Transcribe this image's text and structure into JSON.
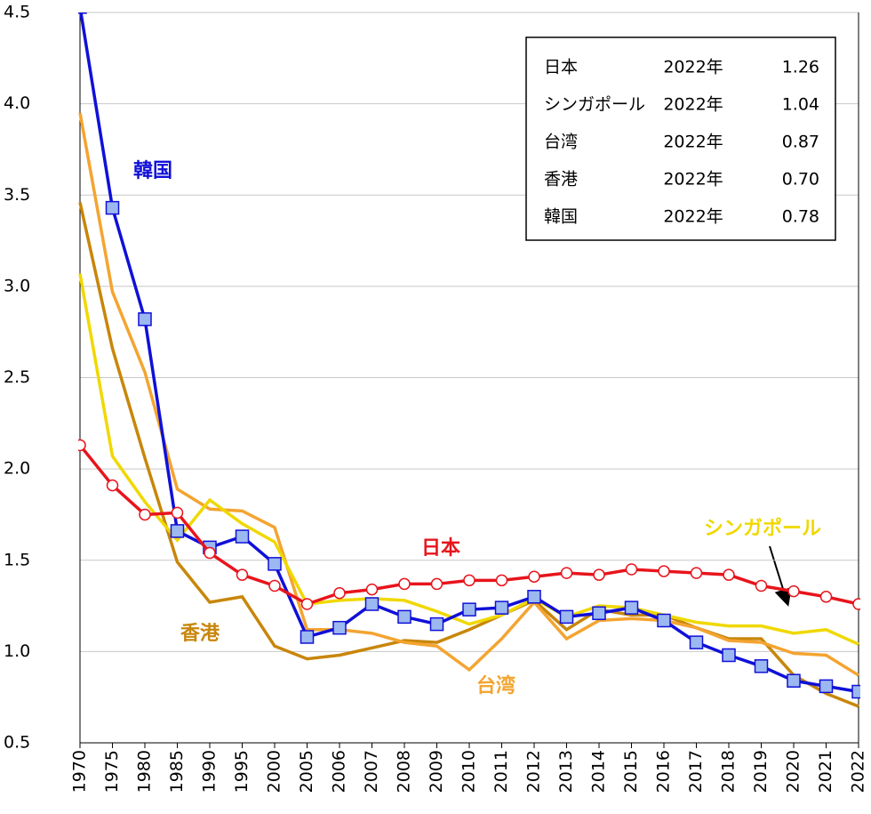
{
  "chart_data": {
    "type": "line",
    "categories": [
      "1970",
      "1975",
      "1980",
      "1985",
      "1990",
      "1995",
      "2000",
      "2005",
      "2006",
      "2007",
      "2008",
      "2009",
      "2010",
      "2011",
      "2012",
      "2013",
      "2014",
      "2015",
      "2016",
      "2017",
      "2018",
      "2019",
      "2020",
      "2021",
      "2022"
    ],
    "series": [
      {
        "name": "日本",
        "color": "#e8141c",
        "marker": "circle",
        "values": [
          2.13,
          1.91,
          1.75,
          1.76,
          1.54,
          1.42,
          1.36,
          1.26,
          1.32,
          1.34,
          1.37,
          1.37,
          1.39,
          1.39,
          1.41,
          1.43,
          1.42,
          1.45,
          1.44,
          1.43,
          1.42,
          1.36,
          1.33,
          1.3,
          1.26
        ]
      },
      {
        "name": "韓国",
        "color": "#1010d8",
        "marker": "square",
        "values": [
          4.53,
          3.43,
          2.82,
          1.66,
          1.57,
          1.63,
          1.48,
          1.08,
          1.13,
          1.26,
          1.19,
          1.15,
          1.23,
          1.24,
          1.3,
          1.19,
          1.21,
          1.24,
          1.17,
          1.05,
          0.98,
          0.92,
          0.84,
          0.81,
          0.78
        ]
      },
      {
        "name": "台湾",
        "color": "#f4a430",
        "marker": "none",
        "values": [
          3.95,
          2.97,
          2.53,
          1.89,
          1.78,
          1.77,
          1.68,
          1.12,
          1.12,
          1.1,
          1.05,
          1.03,
          0.9,
          1.07,
          1.27,
          1.07,
          1.17,
          1.18,
          1.17,
          1.13,
          1.06,
          1.05,
          0.99,
          0.98,
          0.87
        ]
      },
      {
        "name": "香港",
        "color": "#c8860a",
        "marker": "none",
        "values": [
          3.46,
          2.66,
          2.06,
          1.49,
          1.27,
          1.3,
          1.03,
          0.96,
          0.98,
          1.02,
          1.06,
          1.05,
          1.12,
          1.2,
          1.28,
          1.12,
          1.23,
          1.2,
          1.2,
          1.13,
          1.07,
          1.07,
          0.87,
          0.77,
          0.7
        ]
      },
      {
        "name": "シンガポール",
        "color": "#f0d800",
        "marker": "none",
        "values": [
          3.07,
          2.07,
          1.82,
          1.61,
          1.83,
          1.7,
          1.6,
          1.26,
          1.28,
          1.29,
          1.28,
          1.22,
          1.15,
          1.2,
          1.29,
          1.19,
          1.25,
          1.24,
          1.2,
          1.16,
          1.14,
          1.14,
          1.1,
          1.12,
          1.04
        ]
      }
    ],
    "ylim": [
      0.5,
      4.5
    ],
    "yticks": [
      0.5,
      {
        "value": 1,
        "label": "1.0"
      },
      1.5,
      {
        "value": 2,
        "label": "2.0"
      },
      2.5,
      {
        "value": 3,
        "label": "3.0"
      },
      3.5,
      {
        "value": 4,
        "label": "4.0"
      },
      4.5
    ],
    "grid": true,
    "summary_box": [
      [
        "日本",
        "2022年",
        "1.26"
      ],
      [
        "シンガポール",
        "2022年",
        "1.04"
      ],
      [
        "台湾",
        "2022年",
        "0.87"
      ],
      [
        "香港",
        "2022年",
        "0.70"
      ],
      [
        "韓国",
        "2022年",
        "0.78"
      ]
    ]
  }
}
